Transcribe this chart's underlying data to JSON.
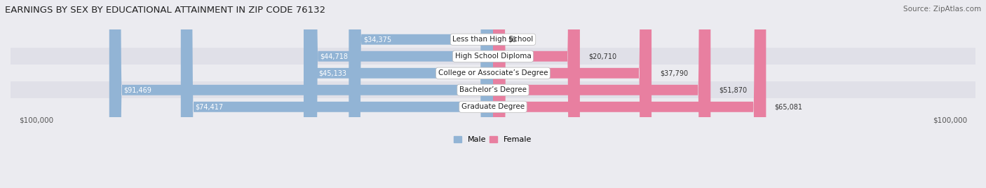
{
  "title": "EARNINGS BY SEX BY EDUCATIONAL ATTAINMENT IN ZIP CODE 76132",
  "source": "Source: ZipAtlas.com",
  "categories": [
    "Less than High School",
    "High School Diploma",
    "College or Associate’s Degree",
    "Bachelor’s Degree",
    "Graduate Degree"
  ],
  "male_values": [
    34375,
    44718,
    45133,
    91469,
    74417
  ],
  "female_values": [
    0,
    20710,
    37790,
    51870,
    65081
  ],
  "max_value": 100000,
  "male_color": "#92b4d5",
  "female_color": "#e87fa0",
  "row_bg_even": "#ebebf0",
  "row_bg_odd": "#e0e0e8",
  "background_color": "#ebebf0",
  "axis_label_left": "$100,000",
  "axis_label_right": "$100,000",
  "male_label": "Male",
  "female_label": "Female",
  "title_fontsize": 9.5,
  "source_fontsize": 7.5,
  "bar_height": 0.62,
  "value_inside_threshold": 18000
}
